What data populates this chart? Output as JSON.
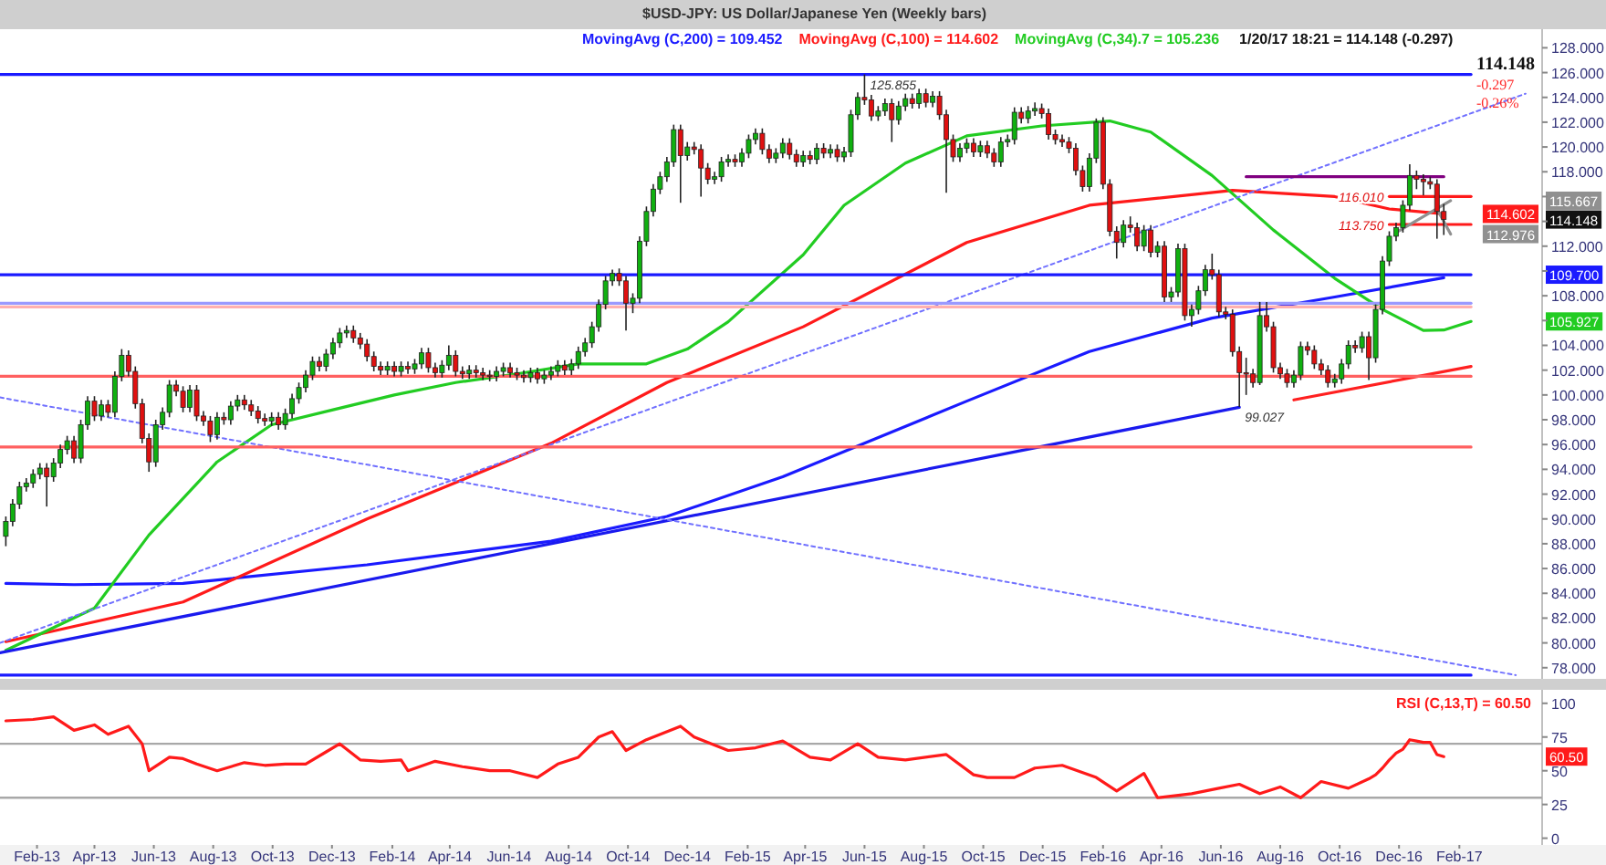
{
  "chart_data": [
    {
      "type": "candlestick",
      "title": "$USD-JPY: US Dollar/Japanese Yen (Weekly bars)",
      "legend": "top",
      "tick_labels": "y",
      "xlim": [
        "2012-12-25",
        "2017-04-27"
      ],
      "ylim": [
        77.1,
        129.5
      ],
      "yticks": [
        {
          "value": 78,
          "label": "78.000"
        },
        {
          "value": 80,
          "label": "80.000"
        },
        {
          "value": 82,
          "label": "82.000"
        },
        {
          "value": 84,
          "label": "84.000"
        },
        {
          "value": 86,
          "label": "86.000"
        },
        {
          "value": 88,
          "label": "88.000"
        },
        {
          "value": 90,
          "label": "90.000"
        },
        {
          "value": 92,
          "label": "92.000"
        },
        {
          "value": 94,
          "label": "94.000"
        },
        {
          "value": 96,
          "label": "96.000"
        },
        {
          "value": 98,
          "label": "98.000"
        },
        {
          "value": 100,
          "label": "100.000"
        },
        {
          "value": 102,
          "label": "102.000"
        },
        {
          "value": 104,
          "label": "104.000"
        },
        {
          "value": 106,
          "label": null
        },
        {
          "value": 108,
          "label": "108.000"
        },
        {
          "value": 110,
          "label": null
        },
        {
          "value": 112,
          "label": "112.000"
        },
        {
          "value": 114,
          "label": null
        },
        {
          "value": 116,
          "label": null
        },
        {
          "value": 118,
          "label": "118.000"
        },
        {
          "value": 120,
          "label": "120.000"
        },
        {
          "value": 122,
          "label": "122.000"
        },
        {
          "value": 124,
          "label": "124.000"
        },
        {
          "value": 126,
          "label": "126.000"
        },
        {
          "value": 128,
          "label": "128.000"
        }
      ],
      "x": [
        "2012-12-31",
        "2013-01-07",
        "2013-01-14",
        "2013-01-21",
        "2013-01-28",
        "2013-02-04",
        "2013-02-11",
        "2013-02-18",
        "2013-02-25",
        "2013-03-04",
        "2013-03-11",
        "2013-03-18",
        "2013-03-25",
        "2013-04-01",
        "2013-04-08",
        "2013-04-15",
        "2013-04-22",
        "2013-04-29",
        "2013-05-06",
        "2013-05-13",
        "2013-05-20",
        "2013-05-27",
        "2013-06-03",
        "2013-06-10",
        "2013-06-17",
        "2013-06-24",
        "2013-07-01",
        "2013-07-08",
        "2013-07-15",
        "2013-07-22",
        "2013-07-29",
        "2013-08-05",
        "2013-08-12",
        "2013-08-19",
        "2013-08-26",
        "2013-09-02",
        "2013-09-09",
        "2013-09-16",
        "2013-09-23",
        "2013-09-30",
        "2013-10-07",
        "2013-10-14",
        "2013-10-21",
        "2013-10-28",
        "2013-11-04",
        "2013-11-11",
        "2013-11-18",
        "2013-11-25",
        "2013-12-02",
        "2013-12-09",
        "2013-12-16",
        "2013-12-23",
        "2013-12-30",
        "2014-01-06",
        "2014-01-13",
        "2014-01-20",
        "2014-01-27",
        "2014-02-03",
        "2014-02-10",
        "2014-02-17",
        "2014-02-24",
        "2014-03-03",
        "2014-03-10",
        "2014-03-17",
        "2014-03-24",
        "2014-03-31",
        "2014-04-07",
        "2014-04-14",
        "2014-04-21",
        "2014-04-28",
        "2014-05-05",
        "2014-05-12",
        "2014-05-19",
        "2014-05-26",
        "2014-06-02",
        "2014-06-09",
        "2014-06-16",
        "2014-06-23",
        "2014-06-30",
        "2014-07-07",
        "2014-07-14",
        "2014-07-21",
        "2014-07-28",
        "2014-08-04",
        "2014-08-11",
        "2014-08-18",
        "2014-08-25",
        "2014-09-01",
        "2014-09-08",
        "2014-09-15",
        "2014-09-22",
        "2014-09-29",
        "2014-10-06",
        "2014-10-13",
        "2014-10-20",
        "2014-10-27",
        "2014-11-03",
        "2014-11-10",
        "2014-11-17",
        "2014-11-24",
        "2014-12-01",
        "2014-12-08",
        "2014-12-15",
        "2014-12-22",
        "2014-12-29",
        "2015-01-05",
        "2015-01-12",
        "2015-01-19",
        "2015-01-26",
        "2015-02-02",
        "2015-02-09",
        "2015-02-16",
        "2015-02-23",
        "2015-03-02",
        "2015-03-09",
        "2015-03-16",
        "2015-03-23",
        "2015-03-30",
        "2015-04-06",
        "2015-04-13",
        "2015-04-20",
        "2015-04-27",
        "2015-05-04",
        "2015-05-11",
        "2015-05-18",
        "2015-05-25",
        "2015-06-01",
        "2015-06-08",
        "2015-06-15",
        "2015-06-22",
        "2015-06-29",
        "2015-07-06",
        "2015-07-13",
        "2015-07-20",
        "2015-07-27",
        "2015-08-03",
        "2015-08-10",
        "2015-08-17",
        "2015-08-24",
        "2015-08-31",
        "2015-09-07",
        "2015-09-14",
        "2015-09-21",
        "2015-09-28",
        "2015-10-05",
        "2015-10-12",
        "2015-10-19",
        "2015-10-26",
        "2015-11-02",
        "2015-11-09",
        "2015-11-16",
        "2015-11-23",
        "2015-11-30",
        "2015-12-07",
        "2015-12-14",
        "2015-12-21",
        "2015-12-28",
        "2016-01-04",
        "2016-01-11",
        "2016-01-18",
        "2016-01-25",
        "2016-02-01",
        "2016-02-08",
        "2016-02-15",
        "2016-02-22",
        "2016-02-29",
        "2016-03-07",
        "2016-03-14",
        "2016-03-21",
        "2016-03-28",
        "2016-04-04",
        "2016-04-11",
        "2016-04-18",
        "2016-04-25",
        "2016-05-02",
        "2016-05-09",
        "2016-05-16",
        "2016-05-23",
        "2016-05-30",
        "2016-06-06",
        "2016-06-13",
        "2016-06-20",
        "2016-06-27",
        "2016-07-04",
        "2016-07-11",
        "2016-07-18",
        "2016-07-25",
        "2016-08-01",
        "2016-08-08",
        "2016-08-15",
        "2016-08-22",
        "2016-08-29",
        "2016-09-05",
        "2016-09-12",
        "2016-09-19",
        "2016-09-26",
        "2016-10-03",
        "2016-10-10",
        "2016-10-17",
        "2016-10-24",
        "2016-10-31",
        "2016-11-07",
        "2016-11-14",
        "2016-11-21",
        "2016-11-28",
        "2016-12-05",
        "2016-12-12",
        "2016-12-19",
        "2016-12-26",
        "2017-01-02",
        "2017-01-09",
        "2017-01-16"
      ],
      "ohlc": [
        [
          88.6,
          90.2,
          87.8,
          89.8
        ],
        [
          89.8,
          91.6,
          89.4,
          91.2
        ],
        [
          91.2,
          93.0,
          90.8,
          92.6
        ],
        [
          92.6,
          93.3,
          92.2,
          92.9
        ],
        [
          92.9,
          94.0,
          92.5,
          93.6
        ],
        [
          93.6,
          94.5,
          93.2,
          94.1
        ],
        [
          94.1,
          94.5,
          91.0,
          93.4
        ],
        [
          93.4,
          94.9,
          93.0,
          94.5
        ],
        [
          94.5,
          96.0,
          94.1,
          95.6
        ],
        [
          95.6,
          96.7,
          95.2,
          96.3
        ],
        [
          96.3,
          96.7,
          94.5,
          94.9
        ],
        [
          94.9,
          98.0,
          94.5,
          97.6
        ],
        [
          97.6,
          99.9,
          97.2,
          99.5
        ],
        [
          99.5,
          99.9,
          97.9,
          98.3
        ],
        [
          98.3,
          99.6,
          97.9,
          99.2
        ],
        [
          99.2,
          99.6,
          98.2,
          98.6
        ],
        [
          98.6,
          101.9,
          98.2,
          101.5
        ],
        [
          101.5,
          103.7,
          101.1,
          103.2
        ],
        [
          103.2,
          103.6,
          101.5,
          101.9
        ],
        [
          101.9,
          102.3,
          98.9,
          99.3
        ],
        [
          99.3,
          99.7,
          96.1,
          96.5
        ],
        [
          96.5,
          96.9,
          93.8,
          94.6
        ],
        [
          94.6,
          98.0,
          94.2,
          97.6
        ],
        [
          97.6,
          99.0,
          97.2,
          98.6
        ],
        [
          98.6,
          101.2,
          98.2,
          100.8
        ],
        [
          100.8,
          101.2,
          99.9,
          100.3
        ],
        [
          100.3,
          100.7,
          98.6,
          99.0
        ],
        [
          99.0,
          100.8,
          98.6,
          100.4
        ],
        [
          100.4,
          100.8,
          97.9,
          98.3
        ],
        [
          98.3,
          98.7,
          97.5,
          97.9
        ],
        [
          97.9,
          98.3,
          96.2,
          96.8
        ],
        [
          96.8,
          98.6,
          96.4,
          98.2
        ],
        [
          98.2,
          98.6,
          97.6,
          98.0
        ],
        [
          98.0,
          99.5,
          97.6,
          99.1
        ],
        [
          99.1,
          100.0,
          98.7,
          99.6
        ],
        [
          99.6,
          100.0,
          98.8,
          99.2
        ],
        [
          99.2,
          99.6,
          98.3,
          98.7
        ],
        [
          98.7,
          99.1,
          97.7,
          98.1
        ],
        [
          98.1,
          98.5,
          97.5,
          97.9
        ],
        [
          97.9,
          98.6,
          97.5,
          98.2
        ],
        [
          98.2,
          98.6,
          97.2,
          97.6
        ],
        [
          97.6,
          98.9,
          97.2,
          98.5
        ],
        [
          98.5,
          100.1,
          98.1,
          99.7
        ],
        [
          99.7,
          101.0,
          99.3,
          100.6
        ],
        [
          100.6,
          102.0,
          100.2,
          101.6
        ],
        [
          101.6,
          103.1,
          101.2,
          102.7
        ],
        [
          102.7,
          103.1,
          101.9,
          102.3
        ],
        [
          102.3,
          103.7,
          101.9,
          103.3
        ],
        [
          103.3,
          104.6,
          102.9,
          104.2
        ],
        [
          104.2,
          105.4,
          103.8,
          105.0
        ],
        [
          105.0,
          105.6,
          104.6,
          105.2
        ],
        [
          105.2,
          105.6,
          104.2,
          104.6
        ],
        [
          104.6,
          105.0,
          103.7,
          104.1
        ],
        [
          104.1,
          104.5,
          102.7,
          103.1
        ],
        [
          103.1,
          103.5,
          101.9,
          102.3
        ],
        [
          102.3,
          102.7,
          101.6,
          102.0
        ],
        [
          102.0,
          102.7,
          101.6,
          102.3
        ],
        [
          102.3,
          102.7,
          101.5,
          101.9
        ],
        [
          101.9,
          102.7,
          101.5,
          102.3
        ],
        [
          102.3,
          102.7,
          101.7,
          102.1
        ],
        [
          102.1,
          102.9,
          101.7,
          102.5
        ],
        [
          102.5,
          103.8,
          102.1,
          103.4
        ],
        [
          103.4,
          103.8,
          101.8,
          102.2
        ],
        [
          102.2,
          102.6,
          101.4,
          101.8
        ],
        [
          101.8,
          102.8,
          101.4,
          102.4
        ],
        [
          102.4,
          104.0,
          102.0,
          103.2
        ],
        [
          103.2,
          103.6,
          101.5,
          101.9
        ],
        [
          101.9,
          102.3,
          101.3,
          101.7
        ],
        [
          101.7,
          102.4,
          101.3,
          102.0
        ],
        [
          102.0,
          102.4,
          101.4,
          101.8
        ],
        [
          101.8,
          102.2,
          101.2,
          101.6
        ],
        [
          101.6,
          102.0,
          101.1,
          101.5
        ],
        [
          101.5,
          102.3,
          101.1,
          101.9
        ],
        [
          101.9,
          102.6,
          101.5,
          102.2
        ],
        [
          102.2,
          102.6,
          101.4,
          101.8
        ],
        [
          101.8,
          102.2,
          101.2,
          101.6
        ],
        [
          101.6,
          102.0,
          101.0,
          101.4
        ],
        [
          101.4,
          102.2,
          101.0,
          101.8
        ],
        [
          101.8,
          102.2,
          100.9,
          101.3
        ],
        [
          101.3,
          102.0,
          100.9,
          101.6
        ],
        [
          101.6,
          102.3,
          101.2,
          101.9
        ],
        [
          101.9,
          102.8,
          101.5,
          102.4
        ],
        [
          102.4,
          102.8,
          101.6,
          102.0
        ],
        [
          102.0,
          102.9,
          101.6,
          102.5
        ],
        [
          102.5,
          103.9,
          102.1,
          103.5
        ],
        [
          103.5,
          104.6,
          103.1,
          104.2
        ],
        [
          104.2,
          105.9,
          103.8,
          105.5
        ],
        [
          105.5,
          107.7,
          105.1,
          107.3
        ],
        [
          107.3,
          109.6,
          106.9,
          109.2
        ],
        [
          109.2,
          110.1,
          108.8,
          109.8
        ],
        [
          109.8,
          110.2,
          108.8,
          109.2
        ],
        [
          109.2,
          109.6,
          105.2,
          107.4
        ],
        [
          107.4,
          108.2,
          106.6,
          107.8
        ],
        [
          107.8,
          112.8,
          107.4,
          112.4
        ],
        [
          112.4,
          115.2,
          112.0,
          114.8
        ],
        [
          114.8,
          117.0,
          114.4,
          116.6
        ],
        [
          116.6,
          118.0,
          116.2,
          117.6
        ],
        [
          117.6,
          119.2,
          117.2,
          118.8
        ],
        [
          118.8,
          121.8,
          118.4,
          121.4
        ],
        [
          121.4,
          121.8,
          115.5,
          119.3
        ],
        [
          119.3,
          120.4,
          118.9,
          120.0
        ],
        [
          120.0,
          120.4,
          119.4,
          119.8
        ],
        [
          119.8,
          120.2,
          116.0,
          118.3
        ],
        [
          118.3,
          118.7,
          117.0,
          117.4
        ],
        [
          117.4,
          118.0,
          117.0,
          117.6
        ],
        [
          117.6,
          119.2,
          117.2,
          118.8
        ],
        [
          118.8,
          119.4,
          118.4,
          119.0
        ],
        [
          119.0,
          119.4,
          118.4,
          118.8
        ],
        [
          118.8,
          119.9,
          118.4,
          119.5
        ],
        [
          119.5,
          121.0,
          119.1,
          120.6
        ],
        [
          120.6,
          121.5,
          120.2,
          121.1
        ],
        [
          121.1,
          121.5,
          119.4,
          119.8
        ],
        [
          119.8,
          120.2,
          118.7,
          119.1
        ],
        [
          119.1,
          119.9,
          118.7,
          119.5
        ],
        [
          119.5,
          120.7,
          119.1,
          120.3
        ],
        [
          120.3,
          120.7,
          119.0,
          119.4
        ],
        [
          119.4,
          119.8,
          118.4,
          118.8
        ],
        [
          118.8,
          119.7,
          118.4,
          119.3
        ],
        [
          119.3,
          119.7,
          118.6,
          119.0
        ],
        [
          119.0,
          120.3,
          118.6,
          119.9
        ],
        [
          119.9,
          120.3,
          119.1,
          119.5
        ],
        [
          119.5,
          120.2,
          119.1,
          119.8
        ],
        [
          119.8,
          120.2,
          118.8,
          119.2
        ],
        [
          119.2,
          120.0,
          118.8,
          119.6
        ],
        [
          119.6,
          123.0,
          119.2,
          122.6
        ],
        [
          122.6,
          124.4,
          122.2,
          124.0
        ],
        [
          124.0,
          125.855,
          123.4,
          123.8
        ],
        [
          123.8,
          124.2,
          122.1,
          122.5
        ],
        [
          122.5,
          123.3,
          122.1,
          122.9
        ],
        [
          122.9,
          123.9,
          122.5,
          123.5
        ],
        [
          123.5,
          123.9,
          120.4,
          122.2
        ],
        [
          122.2,
          123.7,
          121.8,
          123.3
        ],
        [
          123.3,
          124.3,
          122.9,
          123.9
        ],
        [
          123.9,
          124.3,
          123.1,
          123.5
        ],
        [
          123.5,
          124.7,
          123.1,
          124.3
        ],
        [
          124.3,
          124.7,
          123.2,
          123.6
        ],
        [
          123.6,
          124.5,
          123.2,
          124.1
        ],
        [
          124.1,
          124.5,
          122.2,
          122.6
        ],
        [
          122.6,
          123.0,
          116.3,
          120.6
        ],
        [
          120.6,
          121.0,
          118.8,
          119.2
        ],
        [
          119.2,
          120.3,
          118.8,
          119.9
        ],
        [
          119.9,
          120.7,
          119.5,
          120.3
        ],
        [
          120.3,
          120.7,
          119.2,
          119.6
        ],
        [
          119.6,
          120.5,
          119.2,
          120.1
        ],
        [
          120.1,
          120.5,
          119.1,
          119.5
        ],
        [
          119.5,
          119.9,
          118.4,
          118.8
        ],
        [
          118.8,
          120.8,
          118.4,
          120.4
        ],
        [
          120.4,
          121.0,
          120.0,
          120.6
        ],
        [
          120.6,
          123.2,
          120.2,
          122.8
        ],
        [
          122.8,
          123.2,
          121.9,
          122.3
        ],
        [
          122.3,
          123.3,
          121.9,
          122.9
        ],
        [
          122.9,
          123.6,
          122.5,
          123.1
        ],
        [
          123.1,
          123.5,
          122.3,
          122.7
        ],
        [
          122.7,
          123.1,
          120.6,
          121.0
        ],
        [
          121.0,
          121.4,
          120.2,
          120.6
        ],
        [
          120.6,
          121.0,
          120.0,
          120.4
        ],
        [
          120.4,
          120.8,
          119.5,
          119.9
        ],
        [
          119.9,
          120.3,
          117.7,
          118.1
        ],
        [
          118.1,
          118.5,
          116.4,
          116.8
        ],
        [
          116.8,
          119.5,
          116.4,
          119.1
        ],
        [
          119.1,
          122.3,
          118.7,
          122.0
        ],
        [
          122.0,
          122.4,
          116.6,
          117.0
        ],
        [
          117.0,
          117.4,
          112.8,
          113.2
        ],
        [
          113.2,
          113.6,
          111.0,
          112.3
        ],
        [
          112.3,
          114.1,
          111.9,
          113.7
        ],
        [
          113.7,
          114.4,
          113.1,
          113.5
        ],
        [
          113.5,
          113.9,
          111.6,
          112.0
        ],
        [
          112.0,
          113.7,
          111.6,
          113.3
        ],
        [
          113.3,
          113.7,
          111.1,
          111.5
        ],
        [
          111.5,
          112.4,
          111.1,
          112.0
        ],
        [
          112.0,
          112.4,
          107.5,
          107.9
        ],
        [
          107.9,
          108.7,
          107.5,
          108.3
        ],
        [
          108.3,
          112.2,
          107.9,
          111.8
        ],
        [
          111.8,
          112.2,
          106.0,
          106.4
        ],
        [
          106.4,
          107.3,
          105.5,
          106.9
        ],
        [
          106.9,
          108.8,
          106.5,
          108.4
        ],
        [
          108.4,
          110.5,
          108.0,
          110.1
        ],
        [
          110.1,
          111.4,
          109.3,
          109.7
        ],
        [
          109.7,
          110.1,
          106.3,
          106.7
        ],
        [
          106.7,
          107.1,
          106.1,
          106.5
        ],
        [
          106.5,
          106.9,
          103.1,
          103.5
        ],
        [
          103.5,
          103.9,
          99.027,
          101.8
        ],
        [
          101.8,
          103.0,
          100.0,
          101.7
        ],
        [
          101.7,
          102.1,
          100.6,
          101.0
        ],
        [
          101.0,
          107.5,
          100.8,
          106.4
        ],
        [
          106.4,
          107.5,
          105.1,
          105.5
        ],
        [
          105.5,
          105.9,
          101.8,
          102.2
        ],
        [
          102.2,
          102.6,
          101.3,
          101.7
        ],
        [
          101.7,
          102.1,
          100.6,
          101.0
        ],
        [
          101.0,
          102.0,
          100.6,
          101.6
        ],
        [
          101.6,
          104.3,
          101.2,
          103.9
        ],
        [
          103.9,
          104.3,
          103.2,
          103.6
        ],
        [
          103.6,
          104.0,
          102.1,
          102.5
        ],
        [
          102.5,
          102.9,
          101.6,
          102.0
        ],
        [
          102.0,
          102.4,
          100.6,
          101.0
        ],
        [
          101.0,
          101.7,
          100.6,
          101.3
        ],
        [
          101.3,
          102.9,
          100.9,
          102.5
        ],
        [
          102.5,
          104.4,
          102.1,
          104.0
        ],
        [
          104.0,
          104.4,
          103.4,
          103.8
        ],
        [
          103.8,
          105.1,
          103.4,
          104.7
        ],
        [
          104.7,
          105.1,
          101.2,
          103.0
        ],
        [
          103.0,
          107.3,
          102.6,
          106.9
        ],
        [
          106.9,
          111.2,
          106.5,
          110.8
        ],
        [
          110.8,
          113.2,
          110.4,
          112.8
        ],
        [
          112.8,
          113.9,
          112.4,
          113.5
        ],
        [
          113.5,
          115.7,
          113.1,
          115.3
        ],
        [
          115.3,
          118.6,
          114.9,
          117.7
        ],
        [
          117.7,
          118.1,
          116.6,
          117.4
        ],
        [
          117.4,
          117.8,
          116.1,
          117.2
        ],
        [
          117.2,
          117.6,
          116.6,
          117.0
        ],
        [
          117.0,
          117.4,
          112.6,
          114.8
        ],
        [
          114.8,
          115.4,
          112.9,
          114.148
        ]
      ],
      "series": [
        {
          "type": "line",
          "name": "MovingAvg (C,200) = 109.452",
          "color": "#1a1aff",
          "x": [
            "2012-12-31",
            "2013-03-11",
            "2013-07-01",
            "2014-01-06",
            "2014-07-14",
            "2014-11-10",
            "2015-03-09",
            "2015-09-14",
            "2016-01-18",
            "2016-05-23",
            "2016-09-26",
            "2017-01-16"
          ],
          "values": [
            84.8,
            84.7,
            84.8,
            86.3,
            88.2,
            90.2,
            93.4,
            99.5,
            103.5,
            106.2,
            107.9,
            109.452
          ]
        },
        {
          "type": "line",
          "name": "MovingAvg (C,100) = 114.602",
          "color": "#ff1a1a",
          "x": [
            "2012-12-31",
            "2013-07-01",
            "2014-01-06",
            "2014-07-14",
            "2014-11-10",
            "2015-03-30",
            "2015-09-14",
            "2016-01-18",
            "2016-06-13",
            "2016-09-26",
            "2016-11-21",
            "2017-01-16"
          ],
          "values": [
            80.1,
            83.3,
            90.0,
            96.1,
            101.0,
            105.5,
            112.3,
            115.3,
            116.5,
            116.0,
            115.0,
            114.602
          ]
        },
        {
          "type": "line",
          "name": "MovingAvg (C,34).7 = 105.236",
          "color": "#22cc22",
          "x": [
            "2012-12-31",
            "2013-04-01",
            "2013-05-27",
            "2013-08-05",
            "2013-09-30",
            "2013-12-02",
            "2014-02-03",
            "2014-04-07",
            "2014-06-09",
            "2014-08-11",
            "2014-10-20",
            "2014-12-01",
            "2015-01-12",
            "2015-03-30",
            "2015-05-11",
            "2015-07-13",
            "2015-09-14",
            "2015-11-30",
            "2016-02-08",
            "2016-03-21",
            "2016-05-23",
            "2016-07-25",
            "2016-09-26",
            "2016-11-14",
            "2016-12-26",
            "2017-01-16",
            "2017-02-13"
          ],
          "values": [
            79.4,
            82.8,
            88.7,
            94.6,
            97.6,
            98.8,
            100.0,
            101.0,
            101.7,
            102.5,
            102.5,
            103.7,
            105.9,
            111.3,
            115.3,
            118.7,
            120.9,
            121.7,
            122.1,
            121.2,
            117.7,
            113.3,
            109.4,
            106.9,
            105.2,
            105.236,
            105.927
          ]
        },
        {
          "type": "line",
          "color": "#1a1aee",
          "x": [
            "2012-12-25",
            "2016-06-20"
          ],
          "values": [
            79.2,
            99.0
          ]
        },
        {
          "type": "line",
          "color": "#ff2020",
          "x": [
            "2016-08-15",
            "2017-02-13"
          ],
          "values": [
            99.6,
            102.3
          ]
        },
        {
          "type": "line",
          "color": "#7070ff",
          "line_style": "dotted",
          "x": [
            "2012-12-25",
            "2017-04-10"
          ],
          "values": [
            80.0,
            124.3
          ]
        },
        {
          "type": "line",
          "color": "#7070ff",
          "line_style": "dotted",
          "x": [
            "2012-12-25",
            "2017-03-31"
          ],
          "values": [
            99.8,
            77.4
          ]
        },
        {
          "type": "line",
          "color": "#1a1aff",
          "x": [
            "2012-12-25",
            "2017-02-13"
          ],
          "values": [
            125.855,
            125.855
          ]
        },
        {
          "type": "line",
          "color": "#1a1aff",
          "x": [
            "2012-12-25",
            "2017-02-13"
          ],
          "values": [
            109.7,
            109.7
          ]
        },
        {
          "type": "line",
          "color": "#9a9aff",
          "x": [
            "2012-12-25",
            "2017-02-13"
          ],
          "values": [
            107.4,
            107.4
          ]
        },
        {
          "type": "line",
          "color": "#ffb0b0",
          "x": [
            "2012-12-25",
            "2017-02-13"
          ],
          "values": [
            107.1,
            107.1
          ]
        },
        {
          "type": "line",
          "color": "#ff6060",
          "x": [
            "2012-12-25",
            "2017-02-13"
          ],
          "values": [
            101.5,
            101.5
          ]
        },
        {
          "type": "line",
          "color": "#ff6060",
          "x": [
            "2012-12-25",
            "2017-02-13"
          ],
          "values": [
            95.8,
            95.8
          ]
        },
        {
          "type": "line",
          "color": "#1a1aff",
          "x": [
            "2012-12-25",
            "2017-02-13"
          ],
          "values": [
            77.4,
            77.4
          ]
        },
        {
          "type": "line",
          "color": "#800080",
          "x": [
            "2016-06-27",
            "2017-01-16"
          ],
          "values": [
            117.6,
            117.6
          ]
        },
        {
          "type": "line",
          "color": "#ff1a1a",
          "x": [
            "2016-11-21",
            "2017-02-13"
          ],
          "values": [
            116.01,
            116.01
          ]
        },
        {
          "type": "line",
          "color": "#ff1a1a",
          "x": [
            "2016-11-21",
            "2017-02-13"
          ],
          "values": [
            113.75,
            113.75
          ]
        },
        {
          "type": "line",
          "color": "#909090",
          "x": [
            "2016-11-28",
            "2017-01-23"
          ],
          "values": [
            113.1,
            115.667
          ]
        },
        {
          "type": "line",
          "color": "#909090",
          "x": [
            "2017-01-09",
            "2017-01-23"
          ],
          "values": [
            115.0,
            112.976
          ]
        }
      ],
      "annotations": [
        "1/20/17 18:21 = 114.148 (-0.297)",
        "114.148",
        "-0.297",
        "-0.26%",
        "115.667",
        "114.602",
        "114.148",
        "112.976",
        "109.700",
        "105.927",
        {
          "text": "125.855",
          "x": "2015-06-01",
          "y": 125.855
        },
        {
          "text": "99.027",
          "x": "2016-06-20",
          "y": 99.027
        },
        {
          "text": "116.010",
          "x": "2016-11-21",
          "y": 116.01
        },
        {
          "text": "113.750",
          "x": "2016-11-21",
          "y": 113.75
        }
      ]
    },
    {
      "type": "line",
      "legend": "top right",
      "xlim": [
        "2012-12-25",
        "2017-04-27"
      ],
      "ylim": [
        -5,
        110
      ],
      "yticks": [
        0,
        25,
        50,
        75,
        100
      ],
      "xticks": [
        {
          "value": "2013-02-01",
          "label": "Feb-13"
        },
        {
          "value": "2013-04-01",
          "label": "Apr-13"
        },
        {
          "value": "2013-06-01",
          "label": "Jun-13"
        },
        {
          "value": "2013-08-01",
          "label": "Aug-13"
        },
        {
          "value": "2013-10-01",
          "label": "Oct-13"
        },
        {
          "value": "2013-12-01",
          "label": "Dec-13"
        },
        {
          "value": "2014-02-01",
          "label": "Feb-14"
        },
        {
          "value": "2014-04-01",
          "label": "Apr-14"
        },
        {
          "value": "2014-06-01",
          "label": "Jun-14"
        },
        {
          "value": "2014-08-01",
          "label": "Aug-14"
        },
        {
          "value": "2014-10-01",
          "label": "Oct-14"
        },
        {
          "value": "2014-12-01",
          "label": "Dec-14"
        },
        {
          "value": "2015-02-01",
          "label": "Feb-15"
        },
        {
          "value": "2015-04-01",
          "label": "Apr-15"
        },
        {
          "value": "2015-06-01",
          "label": "Jun-15"
        },
        {
          "value": "2015-08-01",
          "label": "Aug-15"
        },
        {
          "value": "2015-10-01",
          "label": "Oct-15"
        },
        {
          "value": "2015-12-01",
          "label": "Dec-15"
        },
        {
          "value": "2016-02-01",
          "label": "Feb-16"
        },
        {
          "value": "2016-04-01",
          "label": "Apr-16"
        },
        {
          "value": "2016-06-01",
          "label": "Jun-16"
        },
        {
          "value": "2016-08-01",
          "label": "Aug-16"
        },
        {
          "value": "2016-10-01",
          "label": "Oct-16"
        },
        {
          "value": "2016-12-01",
          "label": "Dec-16"
        },
        {
          "value": "2017-02-01",
          "label": "Feb-17"
        }
      ],
      "ref_lines": [
        {
          "axis": "y",
          "value": 70,
          "color": "#a8a8a8"
        },
        {
          "axis": "y",
          "value": 30,
          "color": "#a8a8a8"
        }
      ],
      "series": [
        {
          "name": "RSI (C,13,T) = 60.50",
          "color": "#ff1a1a",
          "x": [
            "2012-12-31",
            "2013-01-28",
            "2013-02-18",
            "2013-03-11",
            "2013-04-01",
            "2013-04-15",
            "2013-05-06",
            "2013-05-20",
            "2013-05-27",
            "2013-06-17",
            "2013-07-01",
            "2013-07-15",
            "2013-08-05",
            "2013-09-02",
            "2013-09-23",
            "2013-10-14",
            "2013-11-04",
            "2013-11-25",
            "2013-12-09",
            "2013-12-30",
            "2014-01-20",
            "2014-02-10",
            "2014-02-17",
            "2014-03-17",
            "2014-04-14",
            "2014-05-12",
            "2014-06-02",
            "2014-06-30",
            "2014-07-21",
            "2014-08-11",
            "2014-09-01",
            "2014-09-15",
            "2014-09-29",
            "2014-10-20",
            "2014-11-24",
            "2014-12-08",
            "2015-01-12",
            "2015-02-09",
            "2015-03-09",
            "2015-04-06",
            "2015-04-27",
            "2015-05-25",
            "2015-06-15",
            "2015-07-13",
            "2015-08-24",
            "2015-09-21",
            "2015-10-05",
            "2015-11-02",
            "2015-11-23",
            "2015-12-21",
            "2016-01-25",
            "2016-02-15",
            "2016-03-14",
            "2016-03-28",
            "2016-05-02",
            "2016-05-30",
            "2016-06-20",
            "2016-07-11",
            "2016-08-01",
            "2016-08-22",
            "2016-09-12",
            "2016-10-10",
            "2016-10-31",
            "2016-11-07",
            "2016-11-14",
            "2016-11-21",
            "2016-11-28",
            "2016-12-05",
            "2016-12-12",
            "2016-12-19",
            "2016-12-26",
            "2017-01-02",
            "2017-01-09",
            "2017-01-16"
          ],
          "values": [
            87,
            88,
            90,
            80,
            84,
            77,
            83,
            70,
            50,
            60,
            59,
            55,
            50,
            56,
            54,
            55,
            55,
            64,
            70,
            58,
            57,
            58,
            50,
            57,
            53,
            50,
            50,
            45,
            55,
            60,
            75,
            79,
            65,
            73,
            83,
            75,
            65,
            67,
            72,
            60,
            58,
            70,
            60,
            58,
            62,
            47,
            45,
            45,
            52,
            54,
            45,
            35,
            48,
            30,
            33,
            37,
            40,
            33,
            38,
            30,
            42,
            37,
            44,
            47,
            52,
            58,
            63,
            66,
            73,
            72,
            71,
            71,
            62,
            60.5
          ]
        }
      ],
      "annotations": [
        "60.50"
      ]
    }
  ]
}
